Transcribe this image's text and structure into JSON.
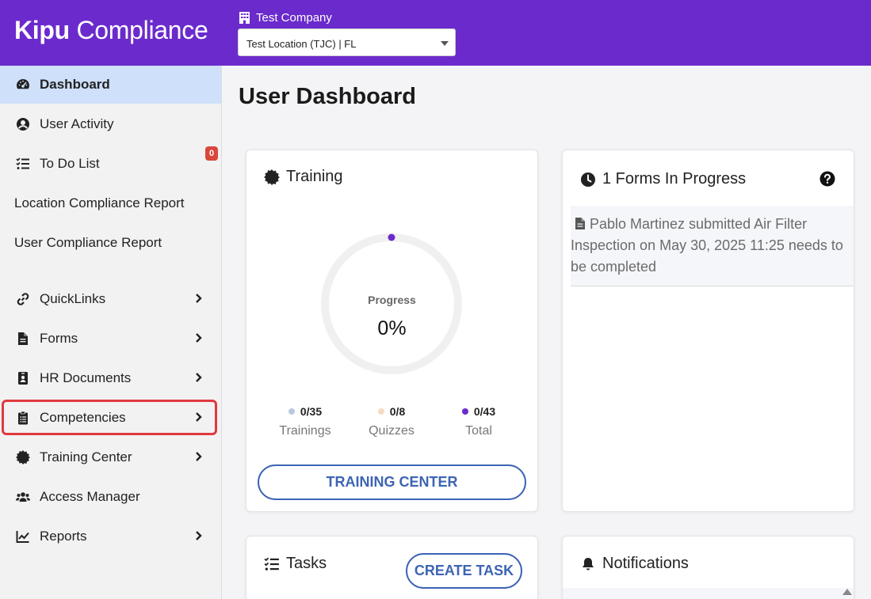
{
  "header": {
    "logo_bold": "Kipu",
    "logo_light": " Compliance",
    "company_name": "Test Company",
    "location_value": "Test Location (TJC) | FL"
  },
  "sidebar": {
    "items": [
      {
        "label": "Dashboard",
        "icon": "dashboard-icon"
      },
      {
        "label": "User Activity",
        "icon": "user-circle-icon"
      },
      {
        "label": "To Do List",
        "icon": "checklist-icon"
      },
      {
        "label": "Location Compliance Report"
      },
      {
        "label": "User Compliance Report"
      },
      {
        "label": "QuickLinks",
        "icon": "link-icon"
      },
      {
        "label": "Forms",
        "icon": "file-icon"
      },
      {
        "label": "HR Documents",
        "icon": "id-badge-icon"
      },
      {
        "label": "Competencies",
        "icon": "clipboard-list-icon"
      },
      {
        "label": "Training Center",
        "icon": "certificate-icon"
      },
      {
        "label": "Access Manager",
        "icon": "users-icon"
      },
      {
        "label": "Reports",
        "icon": "chart-line-icon"
      }
    ],
    "todo_badge": "0"
  },
  "main": {
    "title": "User Dashboard",
    "training": {
      "title": "Training",
      "progress_label": "Progress",
      "progress_value": "0%",
      "progress_fraction": 0,
      "stats": [
        {
          "value": "0/35",
          "name": "Trainings",
          "color": "#b9c9df"
        },
        {
          "value": "0/8",
          "name": "Quizzes",
          "color": "#f5dcc3"
        },
        {
          "value": "0/43",
          "name": "Total",
          "color": "#6b2bcc"
        }
      ],
      "button": "TRAINING CENTER"
    },
    "forms": {
      "title": "1 Forms In Progress",
      "entry": "Pablo Martinez submitted Air Filter Inspection on May 30, 2025 11:25 needs to be completed"
    },
    "tasks": {
      "title": "Tasks",
      "button": "CREATE TASK"
    },
    "notifications": {
      "title": "Notifications"
    }
  },
  "colors": {
    "brand": "#6b2bcc",
    "active_nav": "#cfe0fb",
    "highlight": "#e0393e",
    "button": "#3d64b4"
  }
}
